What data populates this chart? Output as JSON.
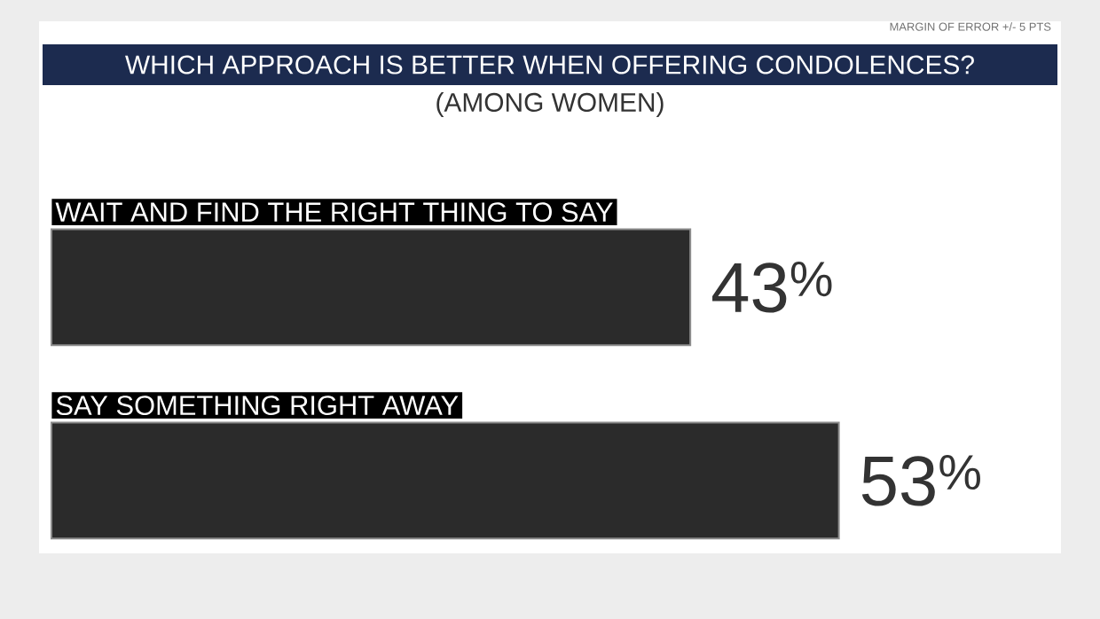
{
  "chart_data": {
    "type": "bar",
    "orientation": "horizontal",
    "title": "WHICH APPROACH IS BETTER WHEN OFFERING CONDOLENCES?",
    "subtitle": "(AMONG WOMEN)",
    "annotations": [
      "MARGIN OF ERROR +/- 5 PTS"
    ],
    "categories": [
      "WAIT AND FIND THE RIGHT THING TO SAY",
      "SAY SOMETHING RIGHT AWAY"
    ],
    "values": [
      43,
      53
    ],
    "value_labels": [
      "43$^{%}$",
      "53$^{%}$"
    ],
    "color": "#2b2b2b"
  }
}
